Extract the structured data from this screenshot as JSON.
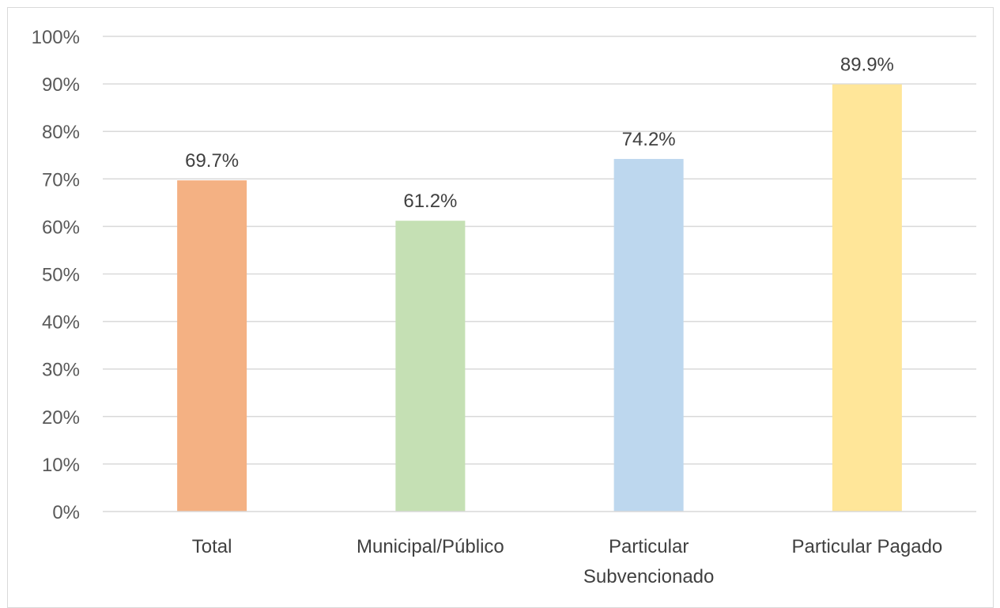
{
  "chart_data": {
    "type": "bar",
    "title": "",
    "xlabel": "",
    "ylabel": "",
    "categories": [
      "Total",
      "Municipal/Público",
      "Particular Subvencionado",
      "Particular Pagado"
    ],
    "category_lines": [
      [
        "Total"
      ],
      [
        "Municipal/Público"
      ],
      [
        "Particular",
        "Subvencionado"
      ],
      [
        "Particular Pagado"
      ]
    ],
    "values": [
      69.7,
      61.2,
      74.2,
      89.9
    ],
    "data_labels": [
      "69.7%",
      "61.2%",
      "74.2%",
      "89.9%"
    ],
    "colors": [
      "#f4b183",
      "#c5e0b4",
      "#bdd7ee",
      "#ffe699"
    ],
    "ylim": [
      0,
      100
    ],
    "yticks": [
      0,
      10,
      20,
      30,
      40,
      50,
      60,
      70,
      80,
      90,
      100
    ],
    "ytick_labels": [
      "0%",
      "10%",
      "20%",
      "30%",
      "40%",
      "50%",
      "60%",
      "70%",
      "80%",
      "90%",
      "100%"
    ],
    "grid": true,
    "legend": "none"
  }
}
